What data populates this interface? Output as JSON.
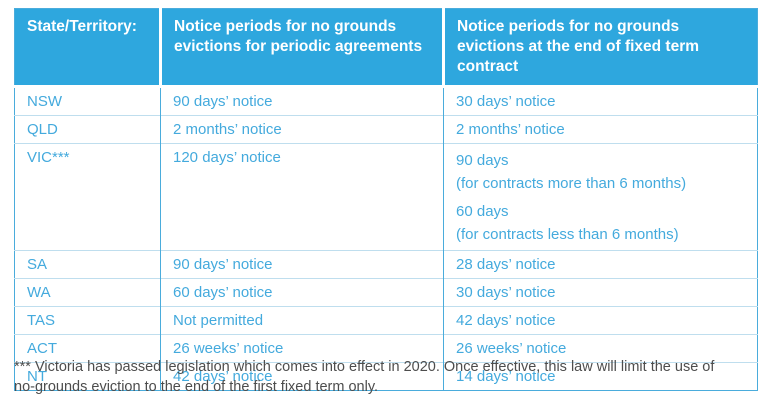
{
  "colors": {
    "header_bg": "#2ea7de",
    "header_text": "#ffffff",
    "body_text": "#44aadd",
    "border_vertical": "#4aacdc",
    "border_horizontal": "#bfdeee",
    "footnote_text": "#4d4d4d"
  },
  "table": {
    "headers": [
      "State/Territory:",
      "Notice periods for no grounds evictions for periodic agreements",
      "Notice periods for no grounds evictions at the end of fixed term contract"
    ],
    "rows": [
      {
        "state": "NSW",
        "periodic": "90 days’ notice",
        "fixed": "30 days’ notice"
      },
      {
        "state": "QLD",
        "periodic": "2 months’ notice",
        "fixed": "2 months’ notice"
      },
      {
        "state": "VIC***",
        "periodic": "120 days’ notice",
        "fixed_blocks": [
          {
            "value": "90 days",
            "note": "(for contracts more than 6 months)"
          },
          {
            "value": "60 days",
            "note": "(for contracts less than 6 months)"
          }
        ]
      },
      {
        "state": "SA",
        "periodic": "90 days’ notice",
        "fixed": "28 days’ notice"
      },
      {
        "state": "WA",
        "periodic": "60 days’ notice",
        "fixed": "30 days’ notice"
      },
      {
        "state": "TAS",
        "periodic": "Not permitted",
        "fixed": "42 days’ notice"
      },
      {
        "state": "ACT",
        "periodic": "26 weeks’ notice",
        "fixed": "26 weeks’ notice"
      },
      {
        "state": "NT",
        "periodic": "42 days’ notice",
        "fixed": "14 days’ notice"
      }
    ]
  },
  "footnote": "*** Victoria has passed legislation which comes into effect in 2020. Once effective, this law will limit the use of no-grounds eviction to the end of the first fixed term only."
}
